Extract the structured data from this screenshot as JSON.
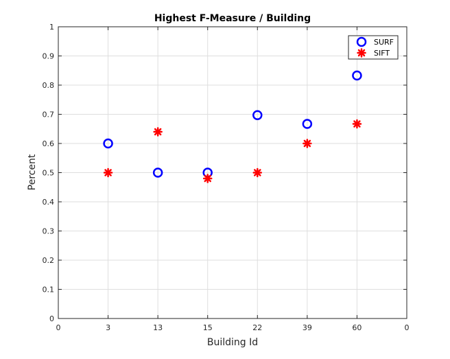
{
  "chart_data": {
    "type": "scatter",
    "title": "Highest F-Measure / Building",
    "xlabel": "Building Id",
    "ylabel": "Percent",
    "x_tick_labels": [
      "0",
      "3",
      "13",
      "15",
      "22",
      "39",
      "60",
      "0"
    ],
    "y_tick_labels": [
      "0",
      "0.1",
      "0.2",
      "0.3",
      "0.4",
      "0.5",
      "0.6",
      "0.7",
      "0.8",
      "0.9",
      "1"
    ],
    "ylim": [
      0,
      1
    ],
    "categories": [
      "3",
      "13",
      "15",
      "22",
      "39",
      "60"
    ],
    "grid": true,
    "legend_position": "top-right",
    "series": [
      {
        "name": "SURF",
        "marker": "circle",
        "color": "#0000ff",
        "values": [
          0.6,
          0.5,
          0.5,
          0.697,
          0.667,
          0.833
        ]
      },
      {
        "name": "SIFT",
        "marker": "asterisk",
        "color": "#ff0000",
        "values": [
          0.5,
          0.64,
          0.48,
          0.5,
          0.6,
          0.667
        ]
      }
    ]
  }
}
